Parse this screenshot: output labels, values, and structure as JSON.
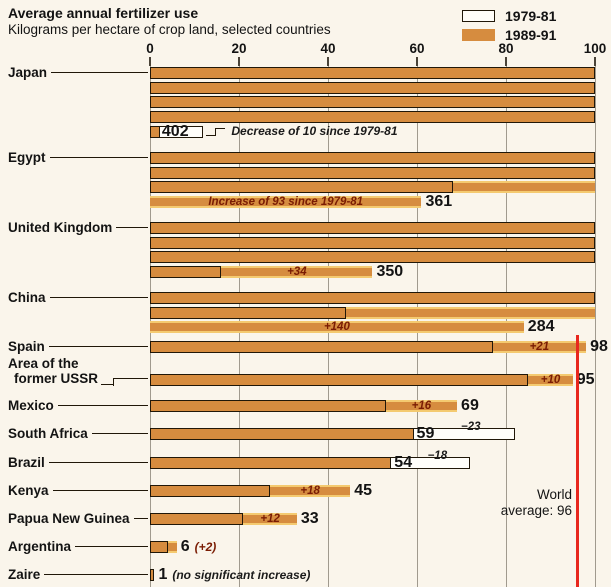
{
  "header": {
    "title": "Average annual fertilizer use",
    "subtitle": "Kilograms per hectare of crop land, selected countries"
  },
  "legend": [
    {
      "label": "1979-81",
      "swatch": "outline"
    },
    {
      "label": "1989-91",
      "swatch": "solid"
    }
  ],
  "world_average": {
    "value": 96,
    "line1": "World",
    "line2": "average: 96"
  },
  "colors": {
    "background": "#faf5eb",
    "bar_1989_91": "#d68c3f",
    "bar_soft_edge": "#f4ca70",
    "bar_outline": "#201708",
    "gridline": "#a09a8e",
    "world_average_line": "#e8271d",
    "annotation_positive": "#7a1c03",
    "annotation_negative": "#1a1a1a",
    "text": "#131313"
  },
  "chart_data": {
    "type": "bar",
    "orientation": "horizontal-wrapped",
    "title": "Average annual fertilizer use",
    "ylabel": "Kilograms per hectare of crop land",
    "x_axis": {
      "ticks": [
        0,
        20,
        40,
        60,
        80,
        100
      ],
      "max": 100,
      "wrap_at": 100,
      "grid": true
    },
    "series": [
      {
        "name": "1979-81",
        "style": "white-outline"
      },
      {
        "name": "1989-91",
        "style": "orange-solid"
      }
    ],
    "world_average": 96,
    "countries": [
      {
        "name": "Japan",
        "label_lines": [
          "Japan"
        ],
        "v1989": 402,
        "v1979": 412,
        "value_label": "402",
        "annotation": "Decrease of 10 since 1979-81",
        "annotation_type": "callout",
        "tone": "negative"
      },
      {
        "name": "Egypt",
        "label_lines": [
          "Egypt"
        ],
        "v1989": 361,
        "v1979": 268,
        "value_label": "361",
        "annotation": "Increase of 93 since 1979-81",
        "annotation_type": "inside",
        "tone": "positive"
      },
      {
        "name": "United Kingdom",
        "label_lines": [
          "United Kingdom"
        ],
        "v1989": 350,
        "v1979": 316,
        "value_label": "350",
        "annotation": "+34",
        "annotation_type": "inside",
        "tone": "positive"
      },
      {
        "name": "China",
        "label_lines": [
          "China"
        ],
        "v1989": 284,
        "v1979": 144,
        "value_label": "284",
        "annotation": "+140",
        "annotation_type": "inside",
        "tone": "positive"
      },
      {
        "name": "Spain",
        "label_lines": [
          "Spain"
        ],
        "v1989": 98,
        "v1979": 77,
        "value_label": "98",
        "annotation": "+21",
        "annotation_type": "inside",
        "tone": "positive"
      },
      {
        "name": "Area of the former USSR",
        "label_lines": [
          "Area of the",
          "former USSR"
        ],
        "v1989": 95,
        "v1979": 85,
        "value_label": "95",
        "annotation": "+10",
        "annotation_type": "inside",
        "tone": "positive"
      },
      {
        "name": "Mexico",
        "label_lines": [
          "Mexico"
        ],
        "v1989": 69,
        "v1979": 53,
        "value_label": "69",
        "annotation": "+16",
        "annotation_type": "inside",
        "tone": "positive"
      },
      {
        "name": "South Africa",
        "label_lines": [
          "South Africa"
        ],
        "v1989": 59,
        "v1979": 82,
        "value_label": "59",
        "annotation": "−23",
        "annotation_type": "beyond",
        "tone": "negative"
      },
      {
        "name": "Brazil",
        "label_lines": [
          "Brazil"
        ],
        "v1989": 54,
        "v1979": 72,
        "value_label": "54",
        "annotation": "−18",
        "annotation_type": "beyond",
        "tone": "negative"
      },
      {
        "name": "Kenya",
        "label_lines": [
          "Kenya"
        ],
        "v1989": 45,
        "v1979": 27,
        "value_label": "45",
        "annotation": "+18",
        "annotation_type": "inside",
        "tone": "positive"
      },
      {
        "name": "Papua New Guinea",
        "label_lines": [
          "Papua New Guinea"
        ],
        "v1989": 33,
        "v1979": 21,
        "value_label": "33",
        "annotation": "+12",
        "annotation_type": "inside",
        "tone": "positive"
      },
      {
        "name": "Argentina",
        "label_lines": [
          "Argentina"
        ],
        "v1989": 6,
        "v1979": 4,
        "value_label": "6",
        "annotation": "(+2)",
        "annotation_type": "after",
        "tone": "positive"
      },
      {
        "name": "Zaire",
        "label_lines": [
          "Zaire"
        ],
        "v1989": 1,
        "v1979": 1,
        "value_label": "1",
        "annotation": "(no significant increase)",
        "annotation_type": "after",
        "tone": "neutral"
      }
    ]
  }
}
